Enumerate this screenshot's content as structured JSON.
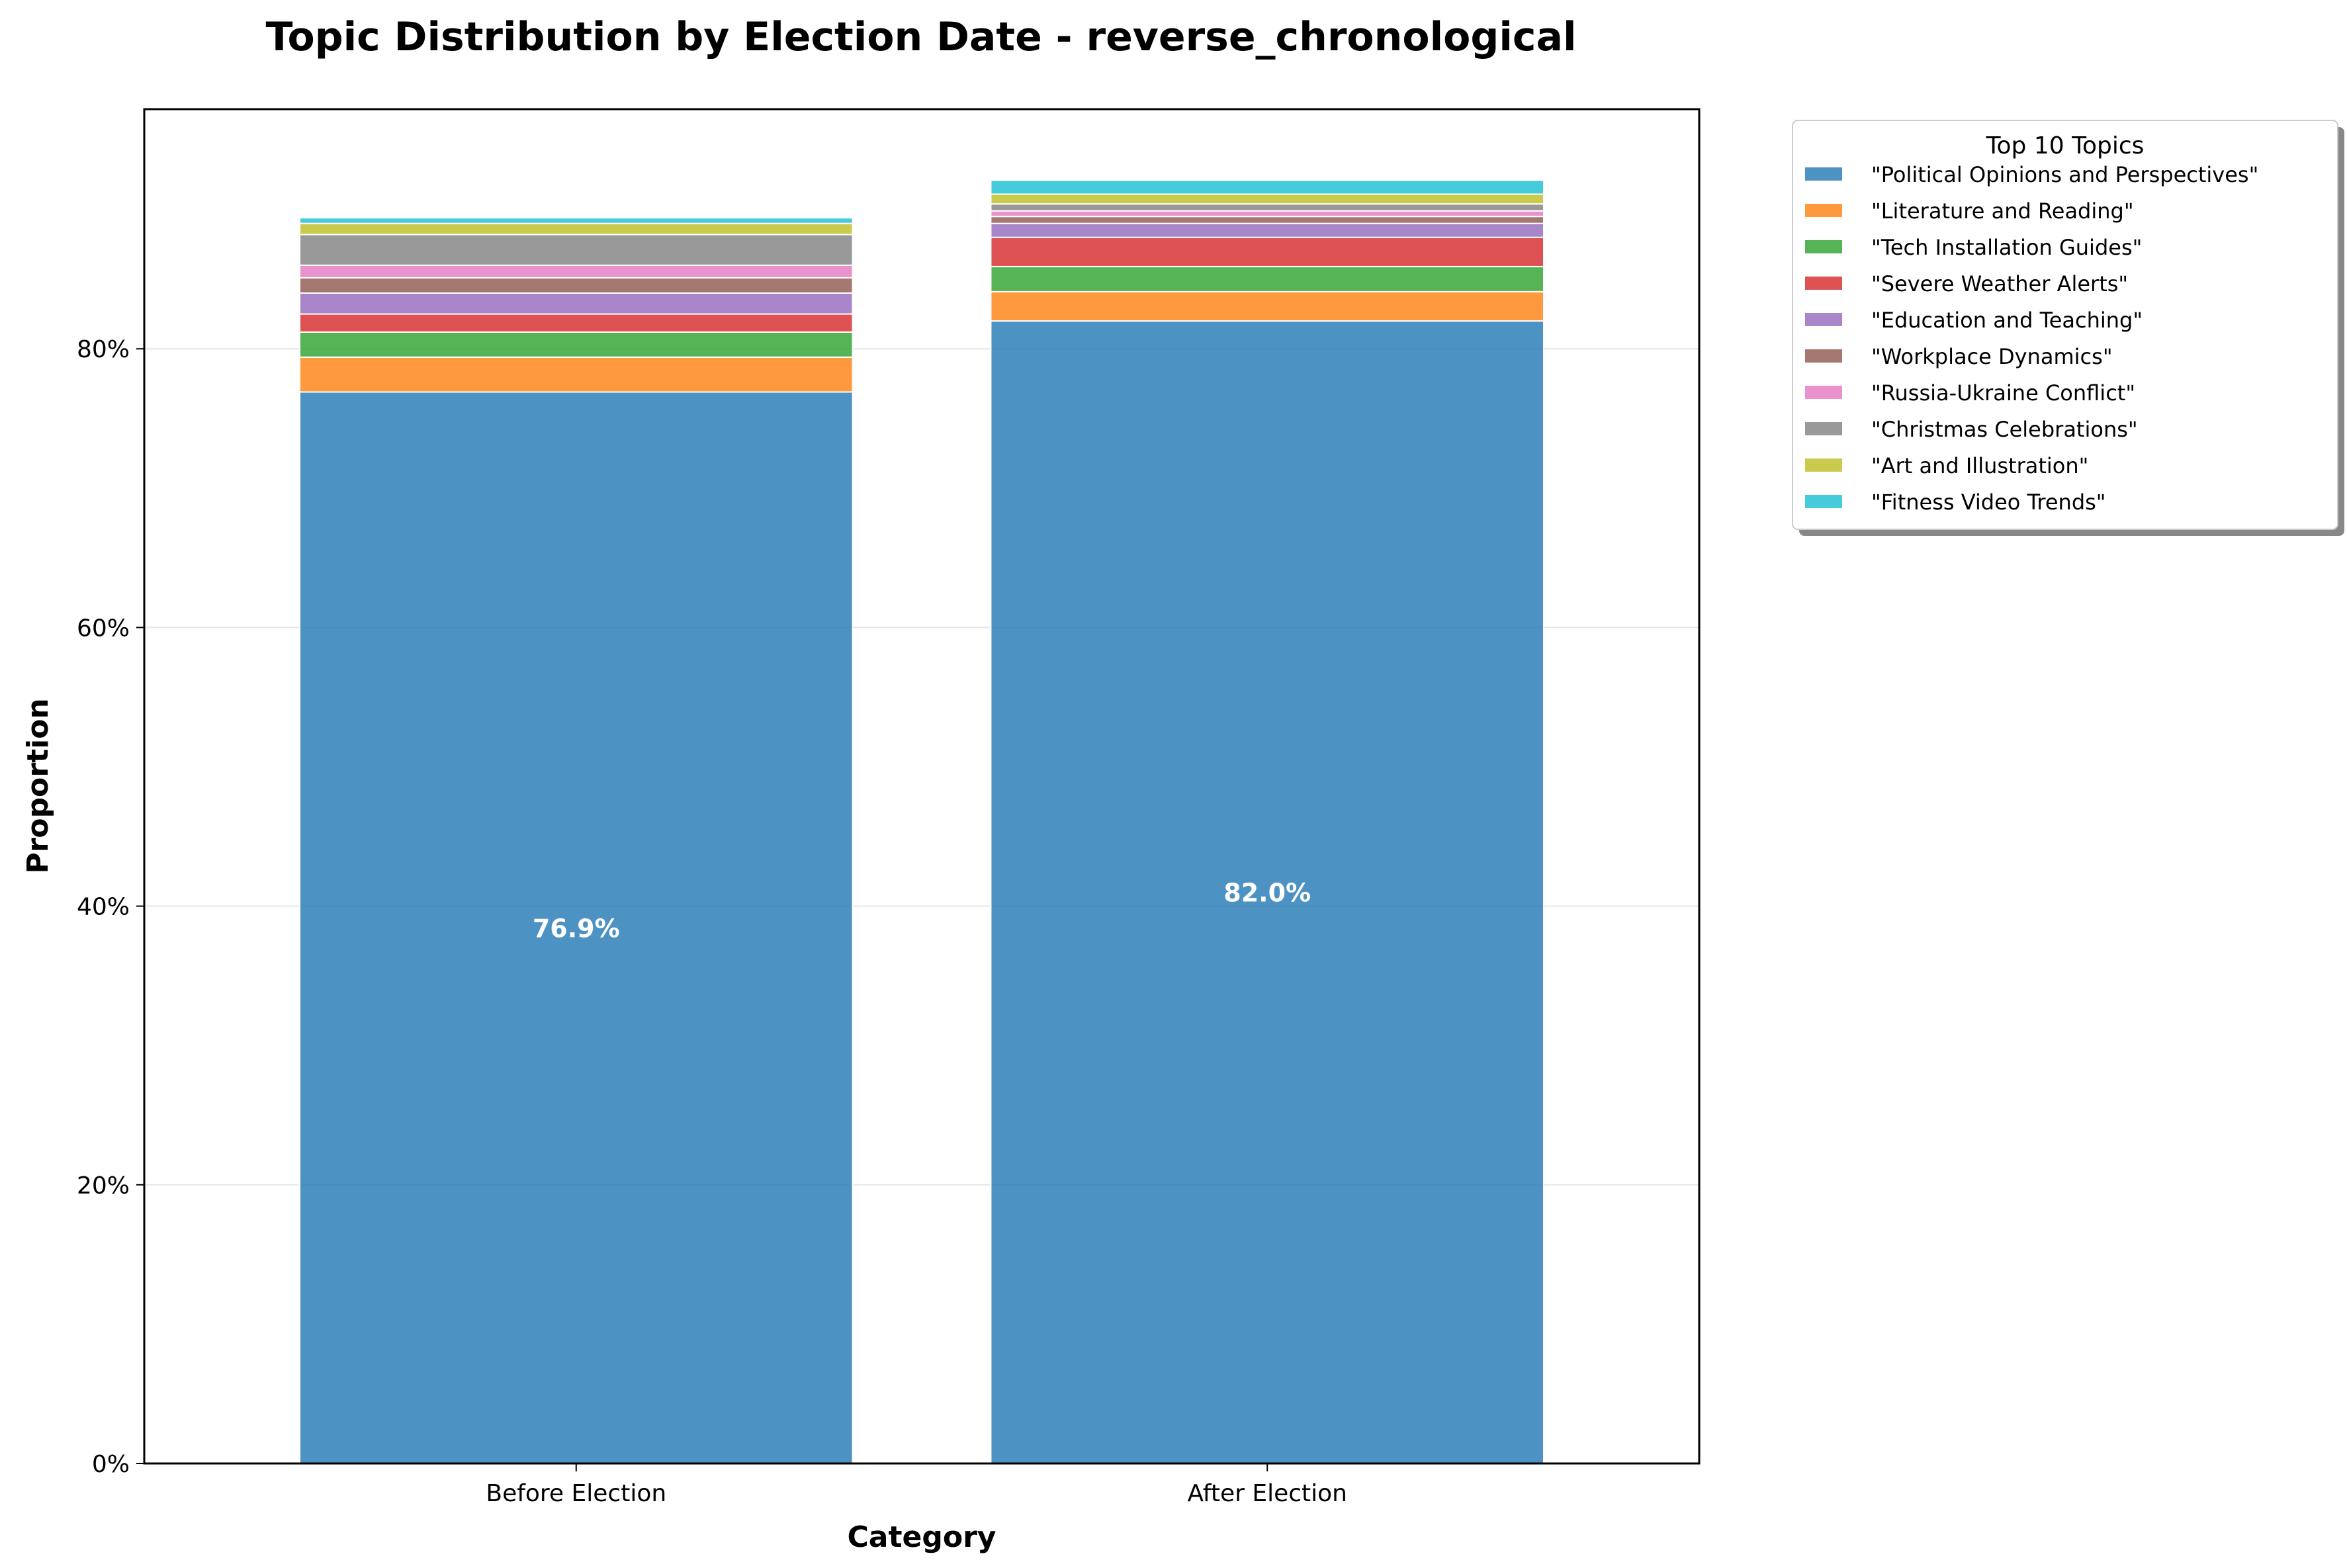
{
  "chart_data": {
    "type": "bar",
    "stacked": true,
    "title": "Topic Distribution by Election Date - reverse_chronological",
    "xlabel": "Category",
    "ylabel": "Proportion",
    "categories": [
      "Before Election",
      "After Election"
    ],
    "ylim": [
      0,
      0.972
    ],
    "yticks": [
      0,
      0.2,
      0.4,
      0.6,
      0.8
    ],
    "ytick_labels": [
      "0%",
      "20%",
      "40%",
      "60%",
      "80%"
    ],
    "grid": "horizontal",
    "legend": {
      "title": "Top 10 Topics",
      "placement": "outside-top-right"
    },
    "series": [
      {
        "name": "\"Political Opinions and Perspectives\"",
        "color": "#1f77b4",
        "values": [
          0.769,
          0.82
        ]
      },
      {
        "name": "\"Literature and Reading\"",
        "color": "#ff7f0e",
        "values": [
          0.025,
          0.021
        ]
      },
      {
        "name": "\"Tech Installation Guides\"",
        "color": "#2ca02c",
        "values": [
          0.018,
          0.018
        ]
      },
      {
        "name": "\"Severe Weather Alerts\"",
        "color": "#d62728",
        "values": [
          0.013,
          0.021
        ]
      },
      {
        "name": "\"Education and Teaching\"",
        "color": "#9467bd",
        "values": [
          0.015,
          0.01
        ]
      },
      {
        "name": "\"Workplace Dynamics\"",
        "color": "#8c564b",
        "values": [
          0.011,
          0.005
        ]
      },
      {
        "name": "\"Russia-Ukraine Conflict\"",
        "color": "#e377c2",
        "values": [
          0.009,
          0.004
        ]
      },
      {
        "name": "\"Christmas Celebrations\"",
        "color": "#7f7f7f",
        "values": [
          0.022,
          0.005
        ]
      },
      {
        "name": "\"Art and Illustration\"",
        "color": "#bcbd22",
        "values": [
          0.008,
          0.007
        ]
      },
      {
        "name": "\"Fitness Video Trends\"",
        "color": "#17becf",
        "values": [
          0.004,
          0.01
        ]
      }
    ],
    "annotations": [
      "76.9%",
      "82.0%"
    ]
  }
}
